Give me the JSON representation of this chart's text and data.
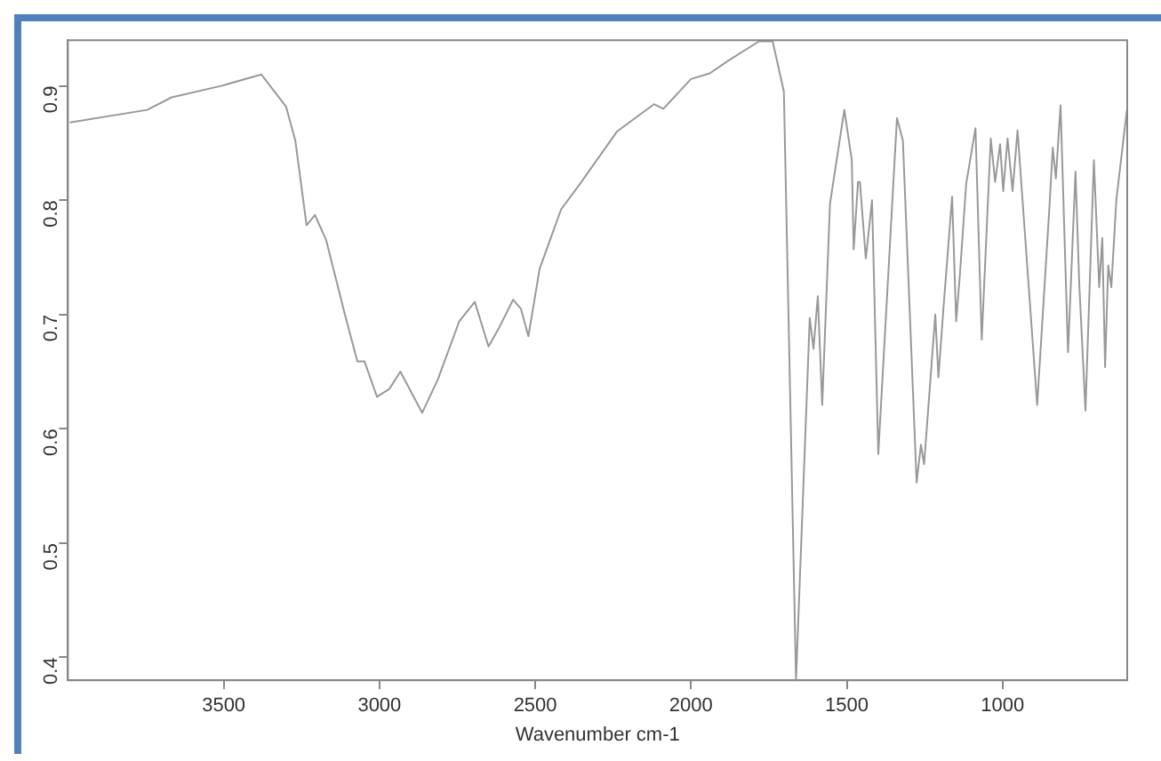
{
  "chart_data": {
    "type": "line",
    "xlabel": "Wavenumber cm-1",
    "color": "#999999",
    "x": [
      3994,
      3746,
      3667,
      3508,
      3379,
      3300,
      3270,
      3234,
      3207,
      3171,
      3111,
      3071,
      3048,
      3008,
      2968,
      2933,
      2863,
      2813,
      2744,
      2694,
      2650,
      2615,
      2571,
      2546,
      2522,
      2486,
      2417,
      2357,
      2238,
      2119,
      2089,
      2000,
      1940,
      1881,
      1782,
      1738,
      1702,
      1663,
      1619,
      1607,
      1593,
      1579,
      1554,
      1508,
      1484,
      1478,
      1464,
      1458,
      1439,
      1419,
      1399,
      1339,
      1320,
      1276,
      1262,
      1252,
      1216,
      1206,
      1190,
      1162,
      1149,
      1137,
      1117,
      1087,
      1067,
      1038,
      1024,
      1008,
      998,
      984,
      968,
      952,
      889,
      849,
      839,
      829,
      814,
      790,
      766,
      754,
      734,
      707,
      690,
      680,
      671,
      661,
      651,
      635,
      601
    ],
    "values": [
      0.868,
      0.879,
      0.89,
      0.9,
      0.91,
      0.882,
      0.852,
      0.778,
      0.787,
      0.765,
      0.7,
      0.659,
      0.659,
      0.628,
      0.635,
      0.65,
      0.614,
      0.643,
      0.694,
      0.711,
      0.672,
      0.689,
      0.713,
      0.705,
      0.681,
      0.74,
      0.792,
      0.814,
      0.86,
      0.884,
      0.88,
      0.906,
      0.911,
      0.922,
      0.939,
      0.939,
      0.895,
      0.38,
      0.697,
      0.67,
      0.716,
      0.621,
      0.797,
      0.879,
      0.835,
      0.757,
      0.816,
      0.816,
      0.749,
      0.8,
      0.578,
      0.872,
      0.852,
      0.553,
      0.586,
      0.569,
      0.7,
      0.645,
      0.705,
      0.803,
      0.694,
      0.735,
      0.814,
      0.863,
      0.678,
      0.854,
      0.816,
      0.849,
      0.808,
      0.854,
      0.808,
      0.861,
      0.621,
      0.797,
      0.846,
      0.819,
      0.883,
      0.667,
      0.825,
      0.727,
      0.616,
      0.835,
      0.724,
      0.767,
      0.654,
      0.743,
      0.724,
      0.8,
      0.879
    ],
    "xlim": [
      4000,
      600
    ],
    "xticks": [
      3500,
      3000,
      2500,
      2000,
      1500,
      1000
    ],
    "ylim": [
      0.38,
      0.94
    ],
    "yticks": [
      0.4,
      0.5,
      0.6,
      0.7,
      0.8,
      0.9
    ],
    "grid": false,
    "legend": false,
    "marker": "none",
    "line_style": "solid"
  }
}
